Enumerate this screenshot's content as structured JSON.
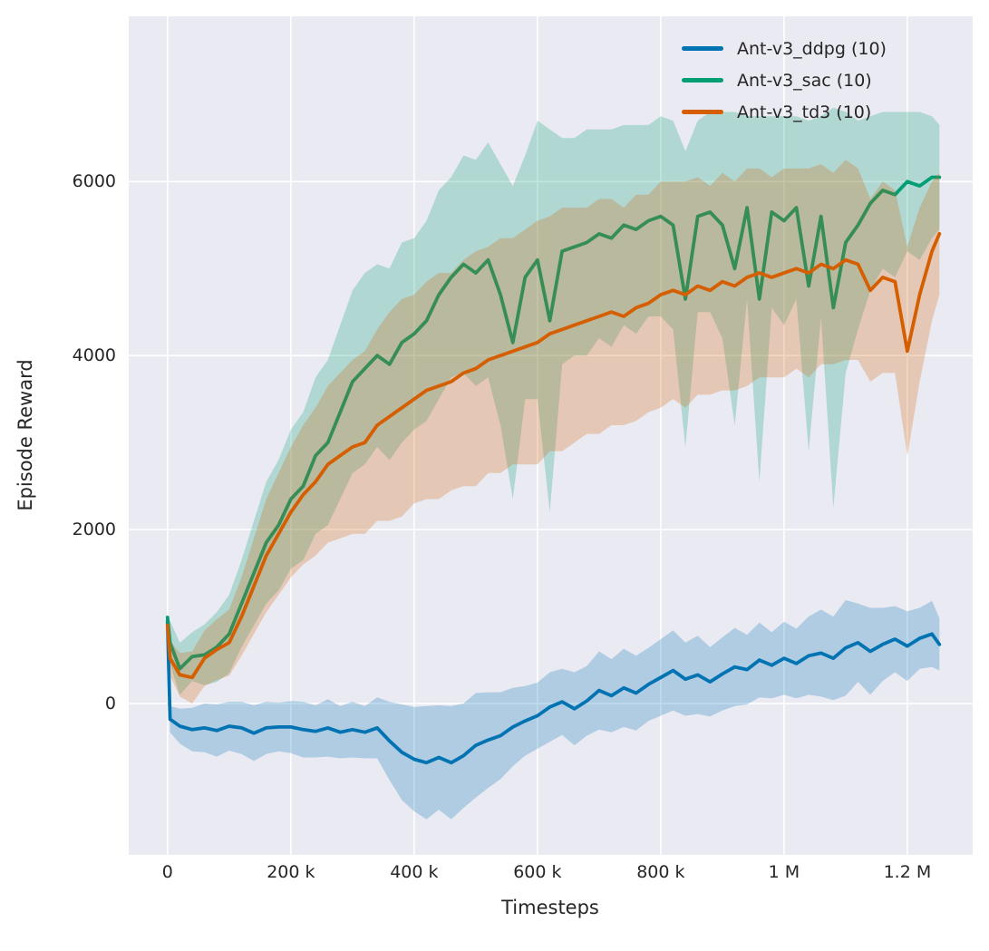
{
  "figure": {
    "background": "#ffffff",
    "plot_background": "#eaeaf2",
    "grid_color": "#ffffff",
    "text_color": "#262626",
    "band_alpha": 0.25
  },
  "chart_data": {
    "type": "line",
    "title": "",
    "xlabel": "Timesteps",
    "ylabel": "Episode Reward",
    "grid": true,
    "legend_position": "upper right",
    "xlim": [
      -63000,
      1306000
    ],
    "ylim": [
      -1740,
      7900
    ],
    "x_ticks": [
      0,
      200000,
      400000,
      600000,
      800000,
      1000000,
      1200000
    ],
    "x_tick_labels": [
      "0",
      "200 k",
      "400 k",
      "600 k",
      "800 k",
      "1 M",
      "1.2 M"
    ],
    "y_ticks": [
      0,
      2000,
      4000,
      6000
    ],
    "y_tick_labels": [
      "0",
      "2000",
      "4000",
      "6000"
    ],
    "x": [
      0,
      4000,
      20000,
      40000,
      60000,
      80000,
      100000,
      120000,
      140000,
      160000,
      180000,
      200000,
      220000,
      240000,
      260000,
      280000,
      300000,
      320000,
      340000,
      360000,
      380000,
      400000,
      420000,
      440000,
      460000,
      480000,
      500000,
      520000,
      540000,
      560000,
      580000,
      600000,
      620000,
      640000,
      660000,
      680000,
      700000,
      720000,
      740000,
      760000,
      780000,
      800000,
      820000,
      840000,
      860000,
      880000,
      900000,
      920000,
      940000,
      960000,
      980000,
      1000000,
      1020000,
      1040000,
      1060000,
      1080000,
      1100000,
      1120000,
      1140000,
      1160000,
      1180000,
      1200000,
      1220000,
      1240000,
      1252000
    ],
    "series": [
      {
        "name": "Ant-v3_ddpg (10)",
        "color": "#0173b2",
        "values": [
          950,
          -180,
          -260,
          -300,
          -280,
          -310,
          -260,
          -280,
          -340,
          -280,
          -270,
          -270,
          -300,
          -320,
          -280,
          -330,
          -300,
          -330,
          -280,
          -430,
          -560,
          -640,
          -680,
          -620,
          -680,
          -600,
          -480,
          -420,
          -370,
          -270,
          -200,
          -140,
          -40,
          20,
          -60,
          30,
          150,
          90,
          180,
          120,
          220,
          300,
          380,
          280,
          330,
          250,
          340,
          420,
          390,
          500,
          440,
          520,
          460,
          550,
          580,
          520,
          640,
          700,
          600,
          680,
          740,
          660,
          750,
          800,
          680
        ],
        "band_halfwidth": [
          50,
          150,
          200,
          250,
          280,
          300,
          280,
          300,
          320,
          300,
          280,
          300,
          320,
          300,
          330,
          300,
          320,
          300,
          350,
          450,
          550,
          600,
          650,
          600,
          650,
          600,
          600,
          550,
          500,
          450,
          400,
          380,
          400,
          380,
          420,
          400,
          450,
          420,
          450,
          430,
          420,
          440,
          460,
          420,
          450,
          400,
          420,
          450,
          400,
          430,
          380,
          420,
          400,
          450,
          500,
          480,
          550,
          450,
          500,
          420,
          380,
          400,
          350,
          380,
          300
        ]
      },
      {
        "name": "Ant-v3_sac (10)",
        "color": "#029e73",
        "values": [
          990,
          700,
          400,
          540,
          560,
          650,
          800,
          1150,
          1500,
          1850,
          2050,
          2350,
          2500,
          2850,
          3000,
          3350,
          3700,
          3850,
          4000,
          3900,
          4150,
          4250,
          4400,
          4700,
          4900,
          5050,
          4950,
          5100,
          4700,
          4150,
          4900,
          5100,
          4400,
          5200,
          5250,
          5300,
          5400,
          5350,
          5500,
          5450,
          5550,
          5600,
          5500,
          4650,
          5600,
          5650,
          5500,
          5000,
          5700,
          4650,
          5650,
          5550,
          5700,
          4800,
          5600,
          4550,
          5300,
          5500,
          5750,
          5900,
          5850,
          6000,
          5950,
          6050,
          6050
        ],
        "band_halfwidth": [
          30,
          250,
          300,
          280,
          350,
          400,
          450,
          500,
          600,
          700,
          750,
          800,
          850,
          900,
          950,
          1000,
          1050,
          1100,
          1050,
          1100,
          1150,
          1100,
          1150,
          1200,
          1150,
          1250,
          1300,
          1350,
          1500,
          1800,
          1400,
          1600,
          2200,
          1300,
          1250,
          1300,
          1200,
          1250,
          1150,
          1200,
          1100,
          1150,
          1200,
          1700,
          1100,
          1150,
          1300,
          1800,
          1050,
          2100,
          1100,
          1200,
          1050,
          1900,
          1150,
          2300,
          1500,
          1200,
          1000,
          900,
          950,
          800,
          850,
          700,
          600
        ]
      },
      {
        "name": "Ant-v3_td3 (10)",
        "color": "#d55e00",
        "values": [
          900,
          520,
          330,
          300,
          520,
          620,
          700,
          1000,
          1350,
          1700,
          1950,
          2200,
          2400,
          2550,
          2750,
          2850,
          2950,
          3000,
          3200,
          3300,
          3400,
          3500,
          3600,
          3650,
          3700,
          3800,
          3850,
          3950,
          4000,
          4050,
          4100,
          4150,
          4250,
          4300,
          4350,
          4400,
          4450,
          4500,
          4450,
          4550,
          4600,
          4700,
          4750,
          4700,
          4800,
          4750,
          4850,
          4800,
          4900,
          4950,
          4900,
          4950,
          5000,
          4950,
          5050,
          5000,
          5100,
          5050,
          4750,
          4900,
          4850,
          4050,
          4700,
          5200,
          5400
        ],
        "band_halfwidth": [
          40,
          200,
          250,
          300,
          320,
          350,
          380,
          450,
          550,
          650,
          700,
          750,
          800,
          850,
          900,
          950,
          1000,
          1050,
          1100,
          1200,
          1250,
          1200,
          1250,
          1300,
          1250,
          1300,
          1350,
          1300,
          1350,
          1300,
          1350,
          1400,
          1350,
          1400,
          1350,
          1300,
          1350,
          1300,
          1250,
          1300,
          1250,
          1300,
          1250,
          1300,
          1250,
          1200,
          1250,
          1200,
          1250,
          1200,
          1150,
          1200,
          1150,
          1200,
          1150,
          1100,
          1150,
          1100,
          1050,
          1100,
          1050,
          1200,
          1000,
          800,
          700
        ]
      }
    ]
  }
}
